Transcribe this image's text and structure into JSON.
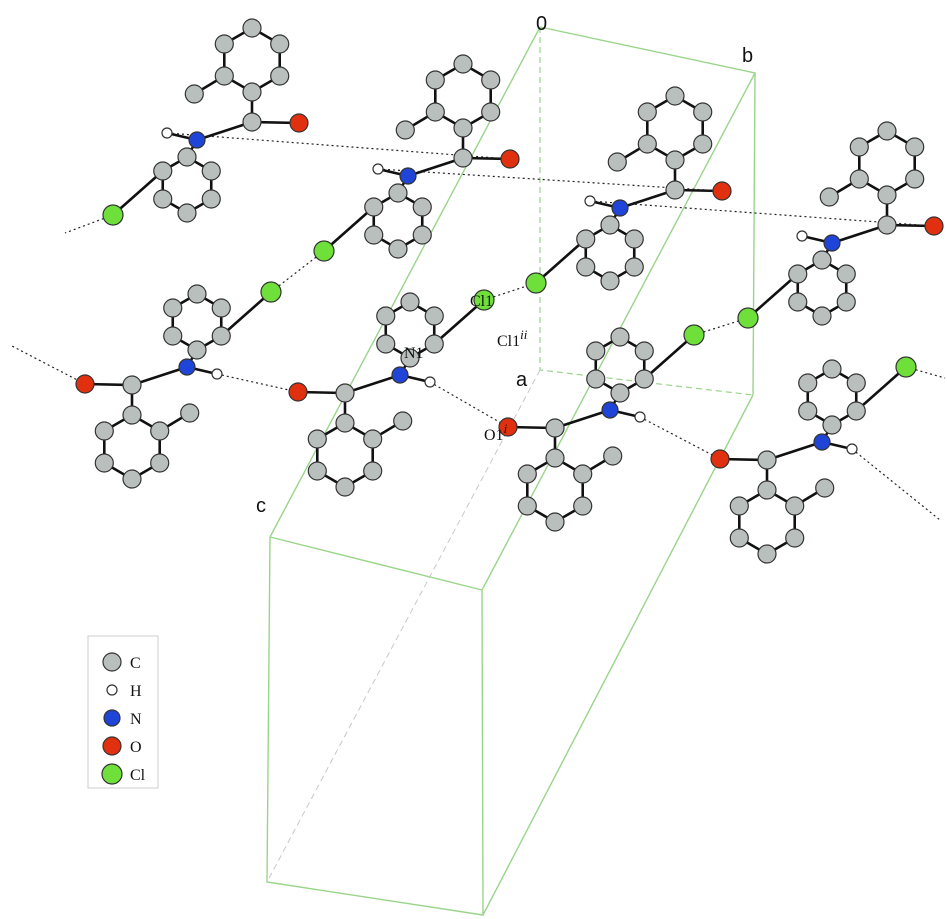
{
  "axes": {
    "origin": "0",
    "a": "a",
    "b": "b",
    "c": "c"
  },
  "atom_labels": [
    {
      "text": "Cl1"
    },
    {
      "text": "Cl1",
      "sup": "ii"
    },
    {
      "text": "N1"
    },
    {
      "text": "O1",
      "sup": "i"
    }
  ],
  "legend": [
    "C",
    "H",
    "N",
    "O",
    "Cl"
  ]
}
